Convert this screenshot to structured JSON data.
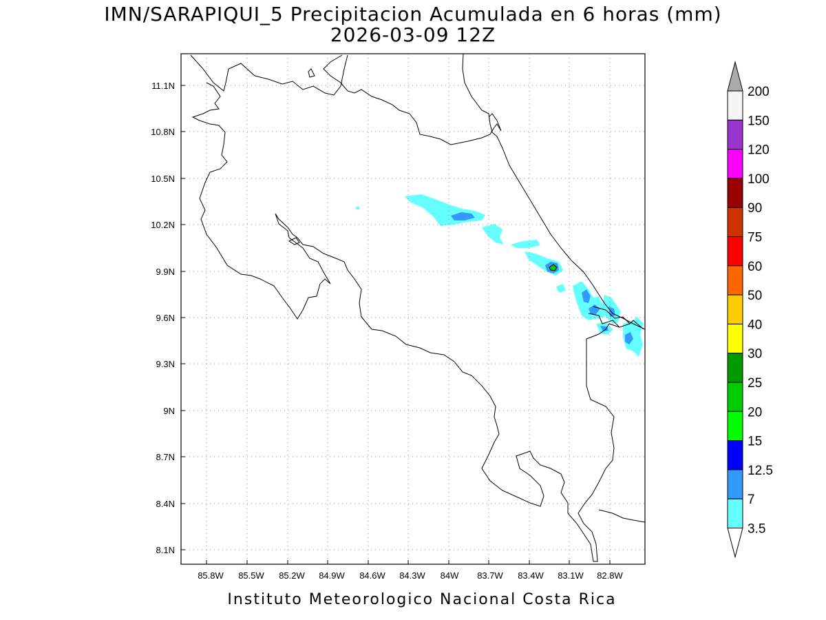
{
  "title_line1": "IMN/SARAPIQUI_5 Precipitacion Acumulada en 6 horas (mm)",
  "title_line2": "2026-03-09 12Z",
  "footer": "Instituto Meteorologico Nacional Costa Rica",
  "lon_labels": [
    "85.8W",
    "85.5W",
    "85.2W",
    "84.9W",
    "84.6W",
    "84.3W",
    "84W",
    "83.7W",
    "83.4W",
    "83.1W",
    "82.8W"
  ],
  "lat_labels": [
    "11.1N",
    "10.8N",
    "10.5N",
    "10.2N",
    "9.9N",
    "9.6N",
    "9.3N",
    "9N",
    "8.7N",
    "8.4N",
    "8.1N"
  ],
  "colorbar": {
    "labels": [
      "200",
      "150",
      "120",
      "100",
      "90",
      "75",
      "60",
      "50",
      "40",
      "30",
      "25",
      "20",
      "15",
      "12.5",
      "7",
      "3.5"
    ],
    "colors": [
      "#f5f5f5",
      "#9933cc",
      "#ff00ff",
      "#990000",
      "#cc3300",
      "#ff0000",
      "#ff6600",
      "#ffcc00",
      "#ffff00",
      "#009900",
      "#00cc00",
      "#00ff00",
      "#0000ff",
      "#3399ff",
      "#66ffff"
    ],
    "over_color": "#aaaaaa",
    "under_color": "#ffffff"
  },
  "precip_fill": {
    "light": "#66ffff",
    "medium": "#3399ff",
    "heavy": "#00cc00"
  }
}
